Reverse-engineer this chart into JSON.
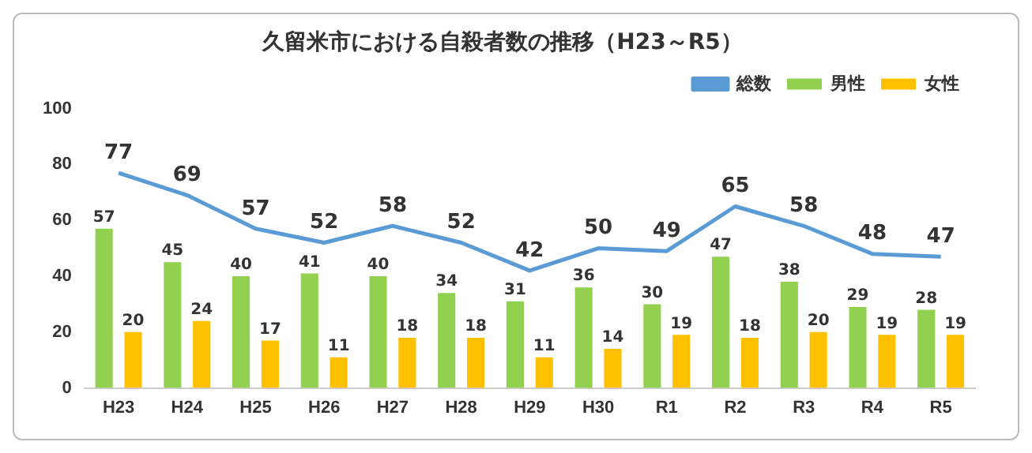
{
  "chart_data": {
    "type": "bar",
    "title": "久留米市における自殺者数の推移（H23～R5）",
    "categories": [
      "H23",
      "H24",
      "H25",
      "H26",
      "H27",
      "H28",
      "H29",
      "H30",
      "R1",
      "R2",
      "R3",
      "R4",
      "R5"
    ],
    "series": [
      {
        "name": "男性",
        "color": "#92d050",
        "values": [
          57,
          45,
          40,
          41,
          40,
          34,
          31,
          36,
          30,
          47,
          38,
          29,
          28
        ]
      },
      {
        "name": "女性",
        "color": "#ffc000",
        "values": [
          20,
          24,
          17,
          11,
          18,
          18,
          11,
          14,
          19,
          18,
          20,
          19,
          19
        ]
      },
      {
        "name": "総数",
        "color": "#5b9bd5",
        "type": "line",
        "values": [
          77,
          69,
          57,
          52,
          58,
          52,
          42,
          50,
          49,
          65,
          58,
          48,
          47
        ]
      }
    ],
    "ylim": [
      0,
      100
    ],
    "yticks": [
      0,
      20,
      40,
      60,
      80,
      100
    ],
    "grid": false,
    "legend": "top right",
    "marker": "none",
    "data_labels": true
  }
}
